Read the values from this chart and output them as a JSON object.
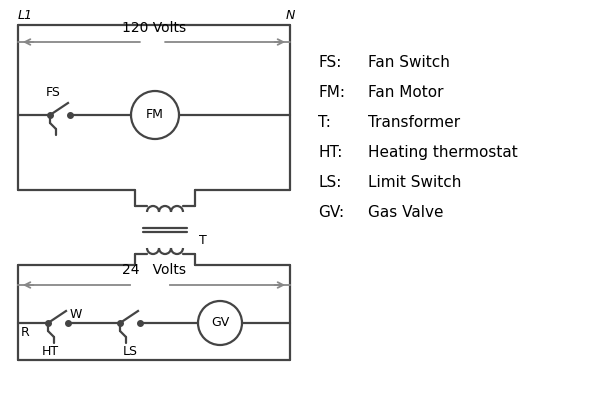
{
  "background_color": "#ffffff",
  "line_color": "#444444",
  "arrow_color": "#888888",
  "text_color": "#000000",
  "L1_label": "L1",
  "N_label": "N",
  "v120_label": "120 Volts",
  "v24_label": "24   Volts",
  "legend_entries": [
    [
      "FS:",
      "Fan Switch"
    ],
    [
      "FM:",
      "Fan Motor"
    ],
    [
      "T:",
      "Transformer"
    ],
    [
      "HT:",
      "Heating thermostat"
    ],
    [
      "LS:",
      "Limit Switch"
    ],
    [
      "GV:",
      "Gas Valve"
    ]
  ],
  "figsize": [
    5.9,
    4.0
  ],
  "dpi": 100
}
